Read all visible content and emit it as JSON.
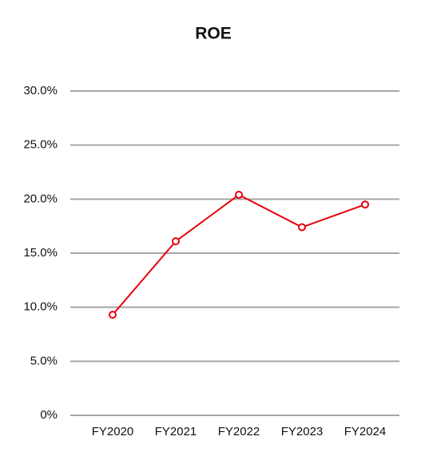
{
  "chart_data": {
    "type": "line",
    "title": "ROE",
    "categories": [
      "FY2020",
      "FY2021",
      "FY2022",
      "FY2023",
      "FY2024"
    ],
    "series": [
      {
        "color": "#e8000b",
        "values": [
          9.3,
          16.1,
          20.4,
          17.4,
          19.5
        ]
      }
    ],
    "ylim": [
      0,
      30
    ],
    "yticks": [
      {
        "value": 0,
        "label": "0%"
      },
      {
        "value": 5,
        "label": "5.0%"
      },
      {
        "value": 10,
        "label": "10.0%"
      },
      {
        "value": 15,
        "label": "15.0%"
      },
      {
        "value": 20,
        "label": "20.0%"
      },
      {
        "value": 25,
        "label": "25.0%"
      },
      {
        "value": 30,
        "label": "30.0%"
      }
    ],
    "grid": true
  }
}
